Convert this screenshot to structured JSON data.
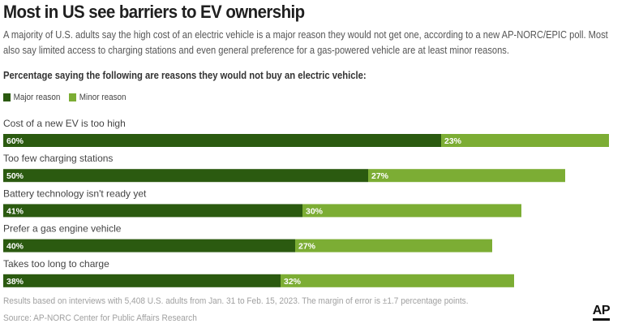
{
  "header": {
    "title": "Most in US see barriers to EV ownership",
    "subtitle": "A majority of U.S. adults say the high cost of an electric vehicle is a major reason they would not get one, according to a new AP-NORC/EPIC poll. Most also say limited access to charging stations and even general preference for a gas-powered vehicle are at least minor reasons.",
    "question": "Percentage saying the following are reasons they would not buy an electric vehicle:"
  },
  "colors": {
    "major": "#2b5a10",
    "minor": "#7cad34"
  },
  "chart_data": {
    "type": "bar",
    "orientation": "horizontal",
    "stacked": true,
    "categories": [
      "Cost of a new EV is too high",
      "Too few charging stations",
      "Battery technology isn't ready yet",
      "Prefer a gas engine vehicle",
      "Takes too long to charge"
    ],
    "series": [
      {
        "name": "Major reason",
        "values": [
          60,
          50,
          41,
          40,
          38
        ],
        "labels": [
          "60%",
          "50%",
          "41%",
          "40%",
          "38%"
        ]
      },
      {
        "name": "Minor reason",
        "values": [
          23,
          27,
          30,
          27,
          32
        ],
        "labels": [
          "23%",
          "27%",
          "30%",
          "27%",
          "32%"
        ]
      }
    ],
    "legend": "top-left",
    "grid": false,
    "xlim": [
      0,
      83
    ]
  },
  "footer": {
    "note": "Results based on interviews with 5,408 U.S. adults from Jan. 31 to Feb. 15, 2023. The margin of error is ±1.7 percentage points.",
    "source": "Source: AP-NORC Center for Public Affairs Research",
    "logo": "AP"
  }
}
